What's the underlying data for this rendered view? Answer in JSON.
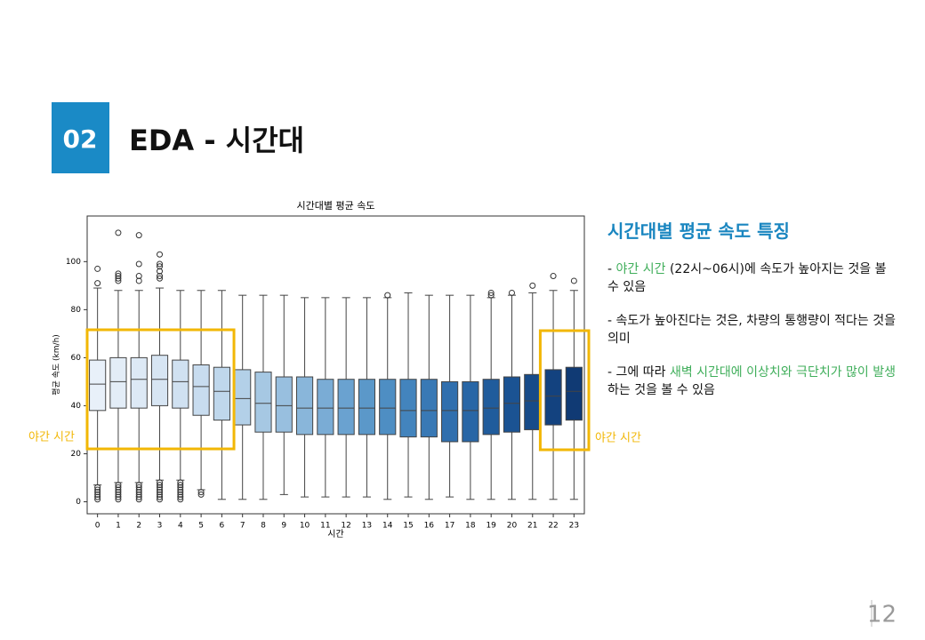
{
  "slide": {
    "number_badge": "02",
    "title": "EDA - 시간대",
    "heading": "시간대별 평균 속도 특징",
    "bullets": [
      [
        {
          "text": "- "
        },
        {
          "text": "야간 시간",
          "color": "#3fae5a"
        },
        {
          "text": " (22시~06시)에 속도가 높아지는 것을 볼 수 있음"
        }
      ],
      [
        {
          "text": "- 속도가 높아진다는 것은, 차량의 통행량이 적다는 것을 의미"
        }
      ],
      [
        {
          "text": "- 그에 따라 "
        },
        {
          "text": "새벽 시간대에 이상치와 극단치가 많이 발생",
          "color": "#3fae5a"
        },
        {
          "text": "하는 것을 볼 수 있음"
        }
      ]
    ],
    "page_number": "12"
  },
  "chart_data": {
    "type": "boxplot",
    "title": "시간대별 평균 속도",
    "x_label": "시간",
    "y_label": "평균 속도 (km/h)",
    "categories": [
      "0",
      "1",
      "2",
      "3",
      "4",
      "5",
      "6",
      "7",
      "8",
      "9",
      "10",
      "11",
      "12",
      "13",
      "14",
      "15",
      "16",
      "17",
      "18",
      "19",
      "20",
      "21",
      "22",
      "23"
    ],
    "colors": [
      "#e8f0f9",
      "#e3edf7",
      "#dde9f5",
      "#d7e5f3",
      "#d0e1f1",
      "#c8dcef",
      "#bfd7ec",
      "#b3d0e8",
      "#a6c8e3",
      "#98bfdf",
      "#89b6da",
      "#7aacd5",
      "#6aa2d0",
      "#5b98c9",
      "#4e8ec3",
      "#4384bd",
      "#3979b5",
      "#306fae",
      "#2866a6",
      "#205c9c",
      "#1b5393",
      "#174b89",
      "#13427f",
      "#103a74"
    ],
    "boxes": [
      {
        "whislo": 7,
        "q1": 38,
        "med": 49,
        "q3": 59,
        "whishi": 89,
        "fliers": [
          97,
          91,
          6,
          5,
          4,
          3,
          2,
          1
        ]
      },
      {
        "whislo": 8,
        "q1": 39,
        "med": 50,
        "q3": 60,
        "whishi": 88,
        "fliers": [
          112,
          95,
          94,
          93,
          92,
          7,
          6,
          5,
          4,
          3,
          2,
          1
        ]
      },
      {
        "whislo": 8,
        "q1": 39,
        "med": 51,
        "q3": 60,
        "whishi": 88,
        "fliers": [
          111,
          99,
          94,
          92,
          7,
          6,
          5,
          4,
          3,
          2,
          1
        ]
      },
      {
        "whislo": 9,
        "q1": 40,
        "med": 51,
        "q3": 61,
        "whishi": 89,
        "fliers": [
          103,
          99,
          98,
          96,
          94,
          93,
          8,
          7,
          6,
          5,
          4,
          3,
          2,
          1
        ]
      },
      {
        "whislo": 9,
        "q1": 39,
        "med": 50,
        "q3": 59,
        "whishi": 88,
        "fliers": [
          8,
          7,
          6,
          5,
          4,
          3,
          2,
          1
        ]
      },
      {
        "whislo": 5,
        "q1": 36,
        "med": 48,
        "q3": 57,
        "whishi": 88,
        "fliers": [
          4,
          3
        ]
      },
      {
        "whislo": 1,
        "q1": 34,
        "med": 46,
        "q3": 56,
        "whishi": 88,
        "fliers": []
      },
      {
        "whislo": 1,
        "q1": 32,
        "med": 43,
        "q3": 55,
        "whishi": 86,
        "fliers": []
      },
      {
        "whislo": 1,
        "q1": 29,
        "med": 41,
        "q3": 54,
        "whishi": 86,
        "fliers": []
      },
      {
        "whislo": 3,
        "q1": 29,
        "med": 40,
        "q3": 52,
        "whishi": 86,
        "fliers": []
      },
      {
        "whislo": 2,
        "q1": 28,
        "med": 39,
        "q3": 52,
        "whishi": 85,
        "fliers": []
      },
      {
        "whislo": 2,
        "q1": 28,
        "med": 39,
        "q3": 51,
        "whishi": 85,
        "fliers": []
      },
      {
        "whislo": 2,
        "q1": 28,
        "med": 39,
        "q3": 51,
        "whishi": 85,
        "fliers": []
      },
      {
        "whislo": 2,
        "q1": 28,
        "med": 39,
        "q3": 51,
        "whishi": 85,
        "fliers": []
      },
      {
        "whislo": 1,
        "q1": 28,
        "med": 39,
        "q3": 51,
        "whishi": 85,
        "fliers": [
          86
        ]
      },
      {
        "whislo": 2,
        "q1": 27,
        "med": 38,
        "q3": 51,
        "whishi": 87,
        "fliers": []
      },
      {
        "whislo": 1,
        "q1": 27,
        "med": 38,
        "q3": 51,
        "whishi": 86,
        "fliers": []
      },
      {
        "whislo": 2,
        "q1": 25,
        "med": 38,
        "q3": 50,
        "whishi": 86,
        "fliers": []
      },
      {
        "whislo": 1,
        "q1": 25,
        "med": 38,
        "q3": 50,
        "whishi": 86,
        "fliers": []
      },
      {
        "whislo": 1,
        "q1": 28,
        "med": 39,
        "q3": 51,
        "whishi": 85,
        "fliers": [
          87,
          86
        ]
      },
      {
        "whislo": 1,
        "q1": 29,
        "med": 41,
        "q3": 52,
        "whishi": 86,
        "fliers": [
          87
        ]
      },
      {
        "whislo": 1,
        "q1": 30,
        "med": 42,
        "q3": 53,
        "whishi": 87,
        "fliers": [
          90
        ]
      },
      {
        "whislo": 1,
        "q1": 32,
        "med": 44,
        "q3": 55,
        "whishi": 88,
        "fliers": [
          94
        ]
      },
      {
        "whislo": 1,
        "q1": 34,
        "med": 46,
        "q3": 56,
        "whishi": 88,
        "fliers": [
          92
        ]
      }
    ],
    "ylim": [
      -5,
      119
    ],
    "yticks": [
      0,
      20,
      40,
      60,
      80,
      100
    ],
    "annotations": [
      "야간 시간",
      "야간 시간"
    ],
    "annotation_color": "#f2b705"
  }
}
